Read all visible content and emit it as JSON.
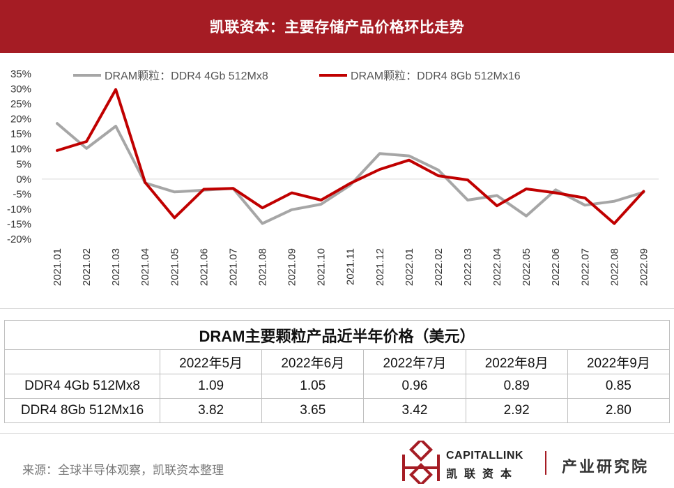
{
  "banner": {
    "title": "凯联资本：主要存储产品价格环比走势"
  },
  "chart_data": {
    "type": "line",
    "categories": [
      "2021.01",
      "2021.02",
      "2021.03",
      "2021.04",
      "2021.05",
      "2021.06",
      "2021.07",
      "2021.08",
      "2021.09",
      "2021.10",
      "2021.11",
      "2021.12",
      "2022.01",
      "2022.02",
      "2022.03",
      "2022.04",
      "2022.05",
      "2022.06",
      "2022.07",
      "2022.08",
      "2022.09"
    ],
    "ylim": [
      -20,
      35
    ],
    "yticks": [
      "35%",
      "30%",
      "25%",
      "20%",
      "15%",
      "10%",
      "5%",
      "0%",
      "-5%",
      "-10%",
      "-15%",
      "-20%"
    ],
    "ytick_values": [
      35,
      30,
      25,
      20,
      15,
      10,
      5,
      0,
      -5,
      -10,
      -15,
      -20
    ],
    "legend_position": "top",
    "series": [
      {
        "name": "DRAM颗粒：DDR4 4Gb 512Mx8",
        "color": "#a6a6a6",
        "values": [
          18.5,
          10.2,
          17.6,
          -1.3,
          -4.3,
          -3.7,
          -3.1,
          -14.8,
          -10.2,
          -8.4,
          -2.0,
          8.5,
          7.7,
          3.0,
          -7.0,
          -5.5,
          -12.3,
          -3.6,
          -8.7,
          -7.4,
          -4.4
        ]
      },
      {
        "name": "DRAM颗粒：DDR4 8Gb 512Mx16",
        "color": "#c00000",
        "values": [
          9.5,
          12.5,
          29.8,
          -1.1,
          -12.9,
          -3.4,
          -3.1,
          -9.6,
          -4.6,
          -7.0,
          -1.4,
          3.2,
          6.3,
          1.1,
          -0.3,
          -8.9,
          -3.3,
          -4.6,
          -6.3,
          -14.8,
          -4.1
        ]
      }
    ]
  },
  "table": {
    "title": "DRAM主要颗粒产品近半年价格（美元）",
    "headers": [
      "",
      "2022年5月",
      "2022年6月",
      "2022年7月",
      "2022年8月",
      "2022年9月"
    ],
    "rows": [
      {
        "label": "DDR4 4Gb 512Mx8",
        "values": [
          "1.09",
          "1.05",
          "0.96",
          "0.89",
          "0.85"
        ]
      },
      {
        "label": "DDR4 8Gb 512Mx16",
        "values": [
          "3.82",
          "3.65",
          "3.42",
          "2.92",
          "2.80"
        ]
      }
    ]
  },
  "footer": {
    "source": "来源：全球半导体观察，凯联资本整理",
    "brand_en": "CAPITALLINK",
    "brand_cn": "凯联资本",
    "tagline": "产业研究院",
    "accent": "#a51c24"
  }
}
